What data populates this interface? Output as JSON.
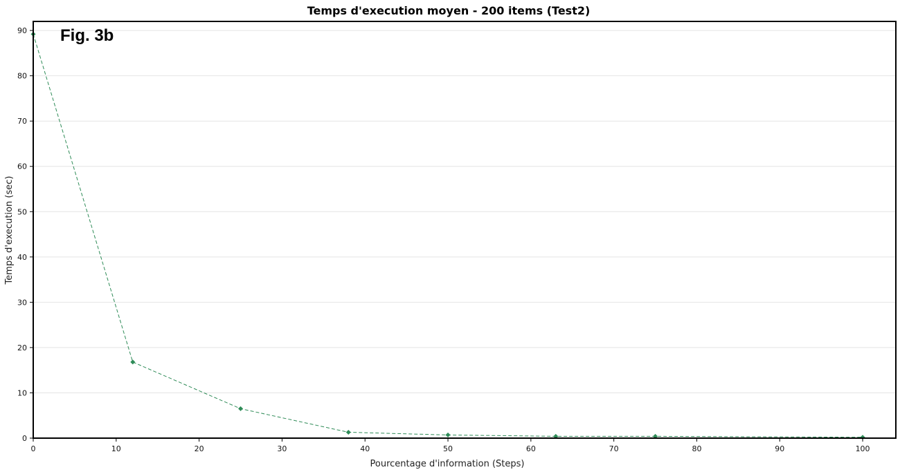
{
  "chart_data": {
    "type": "line",
    "title": "Temps d'execution moyen - 200 items (Test2)",
    "annotation": "Fig. 3b",
    "xlabel": "Pourcentage d'information (Steps)",
    "ylabel": "Temps d'execution (sec)",
    "xlim": [
      0,
      104
    ],
    "ylim": [
      0,
      92
    ],
    "xticks": [
      0,
      10,
      20,
      30,
      40,
      50,
      60,
      70,
      80,
      90,
      100
    ],
    "yticks": [
      0,
      10,
      20,
      30,
      40,
      50,
      60,
      70,
      80,
      90
    ],
    "grid": "horizontal",
    "legend": "none",
    "colors": {
      "series": "#2e8b57",
      "frame": "#000000",
      "grid": "#e4e4e4"
    },
    "marker": "diamond",
    "line_style": "dashed",
    "series": [
      {
        "x": [
          0,
          12,
          25,
          38,
          50,
          63,
          75,
          100
        ],
        "values": [
          89.2,
          16.8,
          6.5,
          1.3,
          0.7,
          0.4,
          0.4,
          0.2
        ]
      }
    ]
  }
}
